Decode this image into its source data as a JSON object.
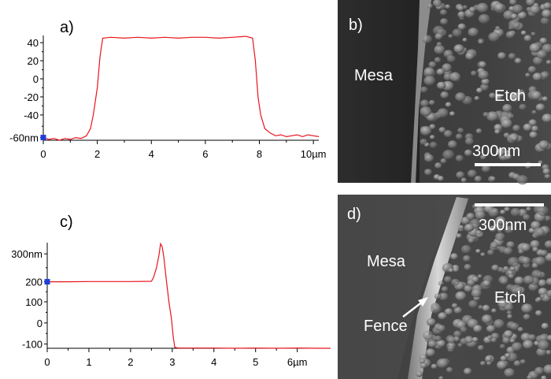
{
  "colors": {
    "trace": "#e8141c",
    "cursor": "#1f3fd6",
    "axis": "#000000",
    "scalebar": "#ffffff"
  },
  "panels": {
    "a": {
      "label": "a)"
    },
    "b": {
      "label": "b)",
      "region_left": "Mesa",
      "region_right": "Etch",
      "scalebar": "300nm"
    },
    "c": {
      "label": "c)"
    },
    "d": {
      "label": "d)",
      "region_left": "Mesa",
      "region_right": "Etch",
      "arrow_label": "Fence",
      "scalebar": "300nm"
    }
  },
  "chart_data": [
    {
      "type": "line",
      "panel": "a",
      "x_ticks": [
        "0",
        "2",
        "4",
        "6",
        "8",
        "10µm"
      ],
      "y_ticks": [
        "40",
        "20",
        "0",
        "-20",
        "-40",
        "-60nm"
      ],
      "xlim": [
        0,
        10.2
      ],
      "ylim": [
        -68,
        48
      ],
      "series": [
        {
          "x": [
            0,
            0.2,
            0.4,
            0.6,
            0.8,
            1.0,
            1.2,
            1.4,
            1.6,
            1.75,
            1.85,
            2.0,
            2.1,
            2.2,
            2.5,
            3.0,
            3.5,
            4.0,
            4.5,
            5.0,
            5.5,
            6.0,
            6.5,
            7.0,
            7.5,
            7.75,
            7.85,
            7.95,
            8.05,
            8.2,
            8.4,
            8.6,
            8.8,
            9.0,
            9.2,
            9.4,
            9.6,
            9.8,
            10.0,
            10.2
          ],
          "y": [
            -65,
            -67,
            -66,
            -68,
            -66,
            -67,
            -65,
            -66,
            -63,
            -55,
            -40,
            -10,
            25,
            45,
            46,
            45,
            46,
            45,
            46,
            45,
            46,
            46,
            45,
            46,
            47,
            45,
            20,
            -20,
            -40,
            -55,
            -60,
            -63,
            -62,
            -64,
            -63,
            -62,
            -64,
            -62,
            -63,
            -64
          ]
        }
      ],
      "cursor": {
        "x": 0,
        "y": -65
      }
    },
    {
      "type": "line",
      "panel": "c",
      "x_ticks": [
        "0",
        "1",
        "2",
        "3",
        "4",
        "5",
        "6µm"
      ],
      "y_ticks": [
        "300nm",
        "200",
        "100",
        "0",
        "-100"
      ],
      "xlim": [
        0,
        6.8
      ],
      "ylim": [
        -120,
        380
      ],
      "series": [
        {
          "x": [
            0,
            0.5,
            1.0,
            1.5,
            2.0,
            2.5,
            2.55,
            2.62,
            2.68,
            2.72,
            2.76,
            2.8,
            2.86,
            2.92,
            2.98,
            3.02,
            3.06,
            3.12,
            3.2,
            3.5,
            4.0,
            4.5,
            5.0,
            5.5,
            6.0,
            6.5,
            6.8
          ],
          "y": [
            195,
            195,
            196,
            196,
            196,
            197,
            215,
            260,
            320,
            375,
            360,
            310,
            200,
            100,
            20,
            -60,
            -115,
            -118,
            -119,
            -119,
            -119,
            -120,
            -119,
            -120,
            -119,
            -120,
            -120
          ]
        }
      ],
      "cursor": {
        "x": 0,
        "y": 195
      }
    }
  ]
}
